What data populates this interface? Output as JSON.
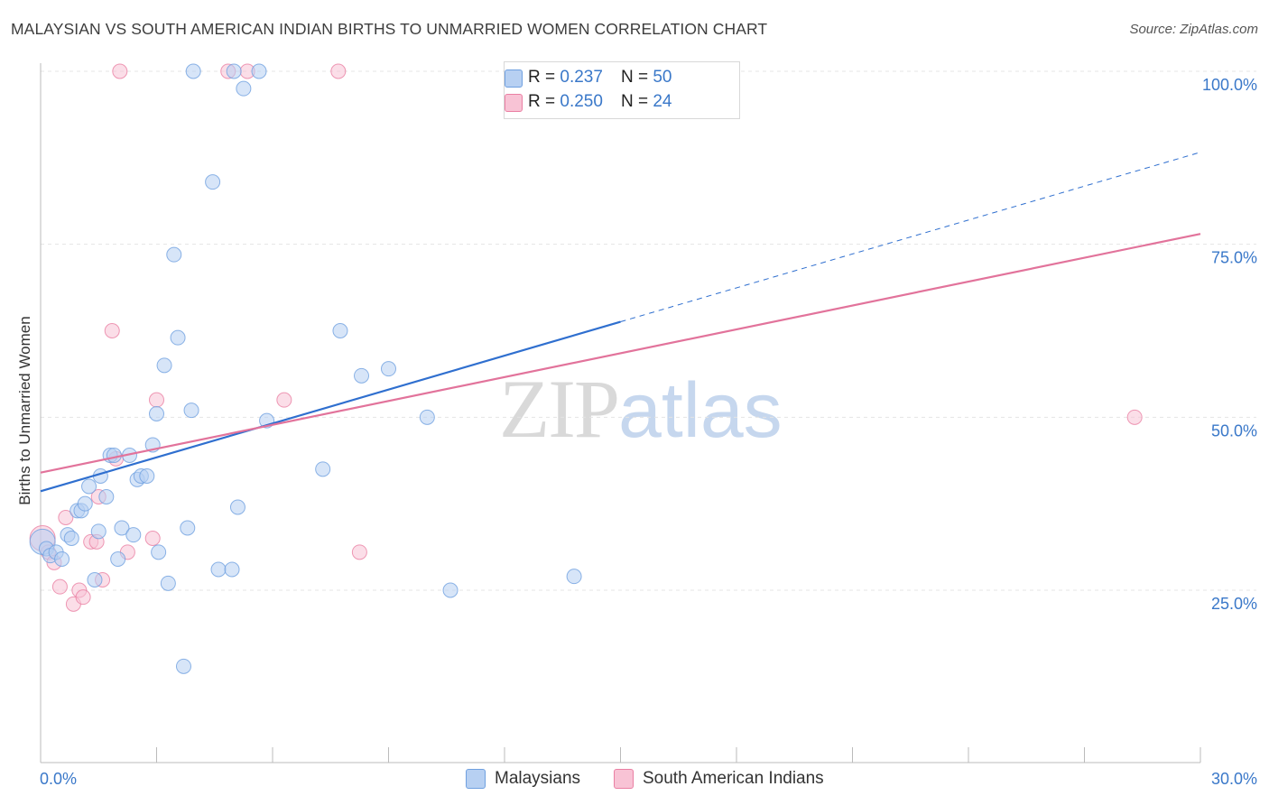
{
  "header": {
    "title": "MALAYSIAN VS SOUTH AMERICAN INDIAN BIRTHS TO UNMARRIED WOMEN CORRELATION CHART",
    "source": "Source: ZipAtlas.com"
  },
  "watermark": {
    "zip": "ZIP",
    "atlas": "atlas"
  },
  "legend": {
    "r_label": "R =",
    "n_label": "N =",
    "rows": [
      {
        "r": "0.237",
        "n": "50"
      },
      {
        "r": "0.250",
        "n": "24"
      }
    ]
  },
  "colors": {
    "malaysians": "#6fa0e0",
    "malaysians_fill": "#b7d0f2",
    "south_american_indians": "#ea7fa3",
    "south_american_indians_fill": "#f8c3d5",
    "blue_line": "#2f6fcf",
    "pink_line": "#e2739b",
    "tick_text": "#3a78c9",
    "grid": "#e4e4e4"
  },
  "chart_data": {
    "type": "scatter",
    "title": "MALAYSIAN VS SOUTH AMERICAN INDIAN BIRTHS TO UNMARRIED WOMEN CORRELATION CHART",
    "xlabel": "",
    "ylabel": "Births to Unmarried Women",
    "xlim": [
      0,
      30
    ],
    "ylim": [
      0,
      105
    ],
    "x_tick_labels": [
      "0.0%",
      "30.0%"
    ],
    "y_ticks": [
      25,
      50,
      75,
      100
    ],
    "y_tick_labels": [
      "25.0%",
      "50.0%",
      "75.0%",
      "100.0%"
    ],
    "grid": true,
    "legend_position": "bottom-center",
    "series": [
      {
        "name": "Malaysians",
        "r": 0.237,
        "n": 50,
        "trend": {
          "x": [
            0,
            15
          ],
          "y": [
            39.3,
            63.8
          ],
          "dashed_extension": {
            "x": [
              15,
              30
            ],
            "y": [
              63.8,
              88.3
            ]
          }
        },
        "points": [
          {
            "x": 0.05,
            "y": 32.0
          },
          {
            "x": 0.15,
            "y": 31.0
          },
          {
            "x": 0.25,
            "y": 30.0
          },
          {
            "x": 0.4,
            "y": 30.5
          },
          {
            "x": 0.55,
            "y": 29.5
          },
          {
            "x": 0.7,
            "y": 33.0
          },
          {
            "x": 0.8,
            "y": 32.5
          },
          {
            "x": 0.95,
            "y": 36.5
          },
          {
            "x": 1.05,
            "y": 36.5
          },
          {
            "x": 1.15,
            "y": 37.5
          },
          {
            "x": 1.25,
            "y": 40.0
          },
          {
            "x": 1.4,
            "y": 26.5
          },
          {
            "x": 1.5,
            "y": 33.5
          },
          {
            "x": 1.55,
            "y": 41.5
          },
          {
            "x": 1.7,
            "y": 38.5
          },
          {
            "x": 1.8,
            "y": 44.5
          },
          {
            "x": 1.9,
            "y": 44.5
          },
          {
            "x": 2.0,
            "y": 29.5
          },
          {
            "x": 2.1,
            "y": 34.0
          },
          {
            "x": 2.3,
            "y": 44.5
          },
          {
            "x": 2.4,
            "y": 33.0
          },
          {
            "x": 2.5,
            "y": 41.0
          },
          {
            "x": 2.6,
            "y": 41.5
          },
          {
            "x": 2.75,
            "y": 41.5
          },
          {
            "x": 2.9,
            "y": 46.0
          },
          {
            "x": 3.0,
            "y": 50.5
          },
          {
            "x": 3.05,
            "y": 30.5
          },
          {
            "x": 3.2,
            "y": 57.5
          },
          {
            "x": 3.3,
            "y": 26.0
          },
          {
            "x": 3.45,
            "y": 73.5
          },
          {
            "x": 3.55,
            "y": 61.5
          },
          {
            "x": 3.7,
            "y": 14.0
          },
          {
            "x": 3.8,
            "y": 34.0
          },
          {
            "x": 3.9,
            "y": 51.0
          },
          {
            "x": 3.95,
            "y": 100.0
          },
          {
            "x": 4.45,
            "y": 84.0
          },
          {
            "x": 4.6,
            "y": 28.0
          },
          {
            "x": 4.95,
            "y": 28.0
          },
          {
            "x": 5.0,
            "y": 100.0
          },
          {
            "x": 5.1,
            "y": 37.0
          },
          {
            "x": 5.25,
            "y": 97.5
          },
          {
            "x": 5.65,
            "y": 100.0
          },
          {
            "x": 5.85,
            "y": 49.5
          },
          {
            "x": 7.3,
            "y": 42.5
          },
          {
            "x": 7.75,
            "y": 62.5
          },
          {
            "x": 8.3,
            "y": 56.0
          },
          {
            "x": 9.0,
            "y": 57.0
          },
          {
            "x": 10.0,
            "y": 50.0
          },
          {
            "x": 10.6,
            "y": 25.0
          },
          {
            "x": 13.8,
            "y": 27.0
          }
        ]
      },
      {
        "name": "South American Indians",
        "r": 0.25,
        "n": 24,
        "trend": {
          "x": [
            0,
            30
          ],
          "y": [
            42.0,
            76.5
          ]
        },
        "points": [
          {
            "x": 0.05,
            "y": 32.5
          },
          {
            "x": 0.2,
            "y": 30.5
          },
          {
            "x": 0.35,
            "y": 29.0
          },
          {
            "x": 0.5,
            "y": 25.5
          },
          {
            "x": 0.65,
            "y": 35.5
          },
          {
            "x": 0.85,
            "y": 23.0
          },
          {
            "x": 1.0,
            "y": 25.0
          },
          {
            "x": 1.1,
            "y": 24.0
          },
          {
            "x": 1.3,
            "y": 32.0
          },
          {
            "x": 1.45,
            "y": 32.0
          },
          {
            "x": 1.5,
            "y": 38.5
          },
          {
            "x": 1.6,
            "y": 26.5
          },
          {
            "x": 1.85,
            "y": 62.5
          },
          {
            "x": 1.95,
            "y": 44.0
          },
          {
            "x": 2.05,
            "y": 100.0
          },
          {
            "x": 2.25,
            "y": 30.5
          },
          {
            "x": 2.9,
            "y": 32.5
          },
          {
            "x": 3.0,
            "y": 52.5
          },
          {
            "x": 4.85,
            "y": 100.0
          },
          {
            "x": 5.35,
            "y": 100.0
          },
          {
            "x": 6.3,
            "y": 52.5
          },
          {
            "x": 7.7,
            "y": 100.0
          },
          {
            "x": 8.25,
            "y": 30.5
          },
          {
            "x": 28.3,
            "y": 50.0
          }
        ]
      }
    ]
  }
}
